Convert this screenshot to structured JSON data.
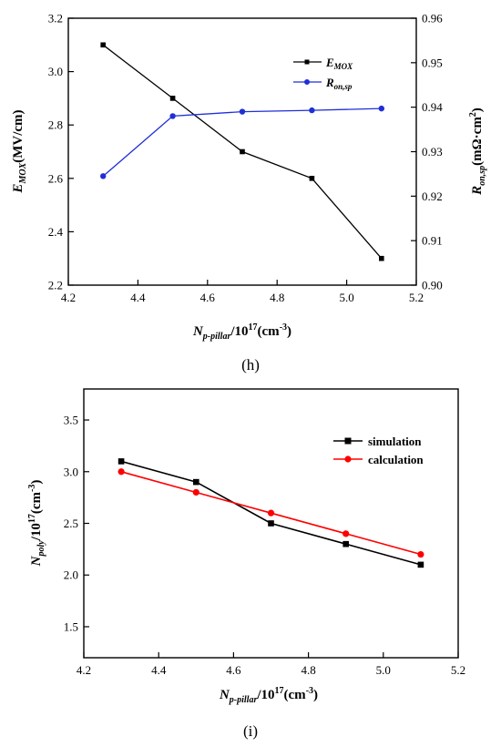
{
  "chart_data": [
    {
      "id": "h",
      "type": "line",
      "panel_label": "(h)",
      "x": [
        4.3,
        4.5,
        4.7,
        4.9,
        5.1
      ],
      "xlim": [
        4.2,
        5.2
      ],
      "xticks": [
        "4.2",
        "4.4",
        "4.6",
        "4.8",
        "5.0",
        "5.2"
      ],
      "xlabel": {
        "main": "N",
        "sub": "p-pillar",
        "mid": "/10",
        "sup1": "17",
        "tail1": "(cm",
        "sup2": "-3",
        "tail2": ")"
      },
      "ylim_left": [
        2.2,
        3.2
      ],
      "yticks_left": [
        "2.2",
        "2.4",
        "2.6",
        "2.8",
        "3.0",
        "3.2"
      ],
      "ylabel_left": {
        "main": "E",
        "sub": "MOX",
        "tail": "(MV/cm)"
      },
      "ylim_right": [
        0.9,
        0.96
      ],
      "yticks_right": [
        "0.90",
        "0.91",
        "0.92",
        "0.93",
        "0.94",
        "0.95",
        "0.96"
      ],
      "ylabel_right": {
        "main": "R",
        "sub": "on,sp",
        "tail": "(mΩ·cm",
        "sup": "2",
        "end": ")"
      },
      "legend_position": "top-right",
      "series": [
        {
          "name": {
            "main": "E",
            "sub": "MOX"
          },
          "axis": "left",
          "color": "#000000",
          "marker": "square",
          "values": [
            3.1,
            2.9,
            2.7,
            2.6,
            2.3
          ]
        },
        {
          "name": {
            "main": "R",
            "sub": "on,sp"
          },
          "axis": "right",
          "color": "#1f2fd6",
          "marker": "circle",
          "values": [
            0.9245,
            0.938,
            0.939,
            0.9393,
            0.9397
          ]
        }
      ]
    },
    {
      "id": "i",
      "type": "line",
      "panel_label": "(i)",
      "x": [
        4.3,
        4.5,
        4.7,
        4.9,
        5.1
      ],
      "xlim": [
        4.2,
        5.2
      ],
      "xticks": [
        "4.2",
        "4.4",
        "4.6",
        "4.8",
        "5.0",
        "5.2"
      ],
      "xlabel": {
        "main": "N",
        "sub": "p-pillar",
        "mid": "/10",
        "sup1": "17",
        "tail1": "(cm",
        "sup2": "-3",
        "tail2": ")"
      },
      "ylim": [
        1.2,
        3.8
      ],
      "yticks": [
        "1.5",
        "2.0",
        "2.5",
        "3.0",
        "3.5"
      ],
      "ytick_values": [
        1.5,
        2.0,
        2.5,
        3.0,
        3.5
      ],
      "ylabel": {
        "main": "N",
        "sub": "poly",
        "mid": "/10",
        "sup1": "17",
        "tail1": "(cm",
        "sup2": "-3",
        "tail2": ")"
      },
      "legend_position": "top-right",
      "series": [
        {
          "name": "simulation",
          "color": "#000000",
          "marker": "square",
          "values": [
            3.1,
            2.9,
            2.5,
            2.3,
            2.1
          ]
        },
        {
          "name": "calculation",
          "color": "#ff0000",
          "marker": "circle",
          "values": [
            3.0,
            2.8,
            2.6,
            2.4,
            2.2
          ]
        }
      ]
    }
  ]
}
